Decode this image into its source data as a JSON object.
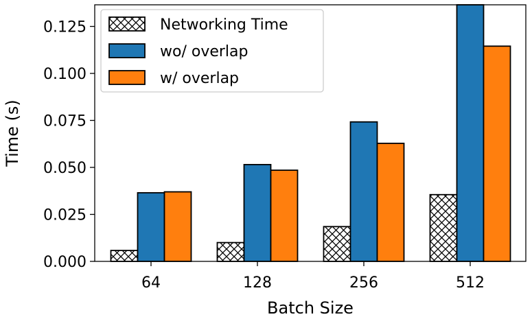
{
  "chart_data": {
    "type": "bar",
    "title": "",
    "xlabel": "Batch Size",
    "ylabel": "Time (s)",
    "categories": [
      "64",
      "128",
      "256",
      "512"
    ],
    "ylim": [
      0,
      0.1365
    ],
    "yticks": [
      "0.000",
      "0.025",
      "0.050",
      "0.075",
      "0.100",
      "0.125"
    ],
    "grid": false,
    "legend_position": "top-left",
    "series": [
      {
        "name": "Networking Time",
        "values": [
          0.0058,
          0.01,
          0.0185,
          0.0355
        ],
        "color": "#ffffff",
        "hatch": "crosshatch"
      },
      {
        "name": "wo/ overlap",
        "values": [
          0.0365,
          0.0515,
          0.0742,
          0.1365
        ],
        "color": "#1f77b4",
        "hatch": "none"
      },
      {
        "name": "w/ overlap",
        "values": [
          0.037,
          0.0485,
          0.0628,
          0.1145
        ],
        "color": "#ff7f0e",
        "hatch": "none"
      }
    ]
  }
}
